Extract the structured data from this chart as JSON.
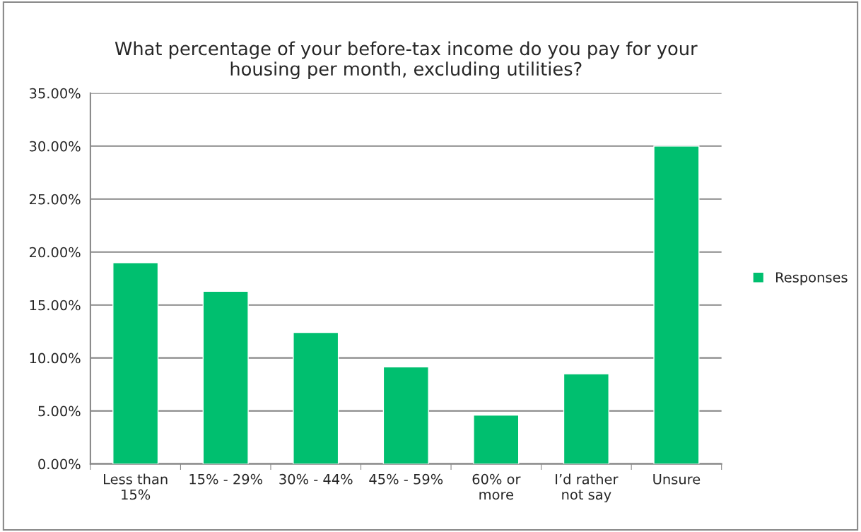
{
  "chart_data": {
    "type": "bar",
    "title": "What percentage of your before-tax income do you pay for your\nhousing per month, excluding utilities?",
    "categories": [
      "Less than\n15%",
      "15% - 29%",
      "30% - 44%",
      "45% - 59%",
      "60% or\nmore",
      "I’d rather\nnot say",
      "Unsure"
    ],
    "series": [
      {
        "name": "Responses",
        "color": "#00bf6f",
        "values": [
          19.0,
          16.3,
          12.4,
          9.15,
          4.6,
          8.5,
          30.0
        ]
      }
    ],
    "ylim": [
      0,
      35
    ],
    "yticks": [
      {
        "value": 0,
        "label": "0.00%"
      },
      {
        "value": 5,
        "label": "5.00%"
      },
      {
        "value": 10,
        "label": "10.00%"
      },
      {
        "value": 15,
        "label": "15.00%"
      },
      {
        "value": 20,
        "label": "20.00%"
      },
      {
        "value": 25,
        "label": "25.00%"
      },
      {
        "value": 30,
        "label": "30.00%"
      },
      {
        "value": 35,
        "label": "35.00%"
      }
    ],
    "grid": "y",
    "legend": "right"
  }
}
